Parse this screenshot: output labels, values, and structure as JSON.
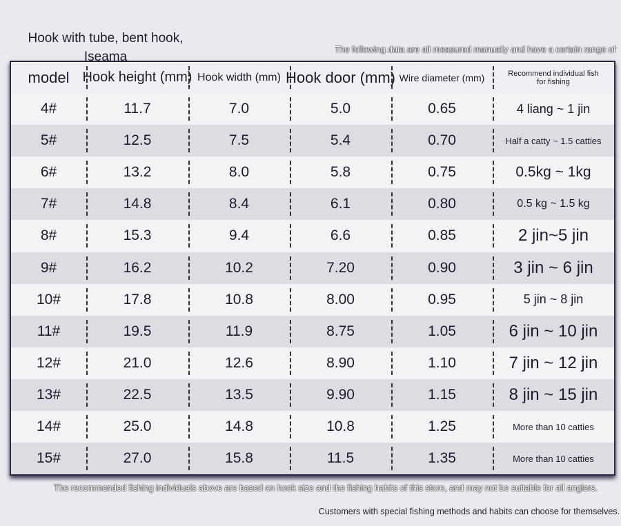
{
  "title": "Hook with tube, bent hook, Iseama",
  "top_note": "The following data are all measured manually and have a certain range of",
  "table": {
    "header": [
      "model",
      "Hook height (mm)",
      "Hook width (mm)",
      "Hook door (mm)",
      "Wire diameter (mm)",
      "Recommend individual fish for fishing"
    ],
    "rows": [
      [
        "4#",
        "11.7",
        "7.0",
        "5.0",
        "0.65",
        "4 liang ~ 1 jin"
      ],
      [
        "5#",
        "12.5",
        "7.5",
        "5.4",
        "0.70",
        "Half a catty ~ 1.5 catties"
      ],
      [
        "6#",
        "13.2",
        "8.0",
        "5.8",
        "0.75",
        "0.5kg ~ 1kg"
      ],
      [
        "7#",
        "14.8",
        "8.4",
        "6.1",
        "0.80",
        "0.5 kg ~ 1.5 kg"
      ],
      [
        "8#",
        "15.3",
        "9.4",
        "6.6",
        "0.85",
        "2 jin~5 jin"
      ],
      [
        "9#",
        "16.2",
        "10.2",
        "7.20",
        "0.90",
        "3 jin ~ 6 jin"
      ],
      [
        "10#",
        "17.8",
        "10.8",
        "8.00",
        "0.95",
        "5 jin ~ 8 jin"
      ],
      [
        "11#",
        "19.5",
        "11.9",
        "8.75",
        "1.05",
        "6 jin ~ 10 jin"
      ],
      [
        "12#",
        "21.0",
        "12.6",
        "8.90",
        "1.10",
        "7 jin ~ 12 jin"
      ],
      [
        "13#",
        "22.5",
        "13.5",
        "9.90",
        "1.15",
        "8 jin ~ 15 jin"
      ],
      [
        "14#",
        "25.0",
        "14.8",
        "10.8",
        "1.25",
        "More than 10 catties"
      ],
      [
        "15#",
        "27.0",
        "15.8",
        "11.5",
        "1.35",
        "More than 10 catties"
      ]
    ]
  },
  "footer_notes": [
    "The recommended fishing individuals above are based on hook size and the fishing habits of this store, and may not be suitable for all anglers.",
    "Customers with special fishing methods and habits can choose for themselves."
  ]
}
